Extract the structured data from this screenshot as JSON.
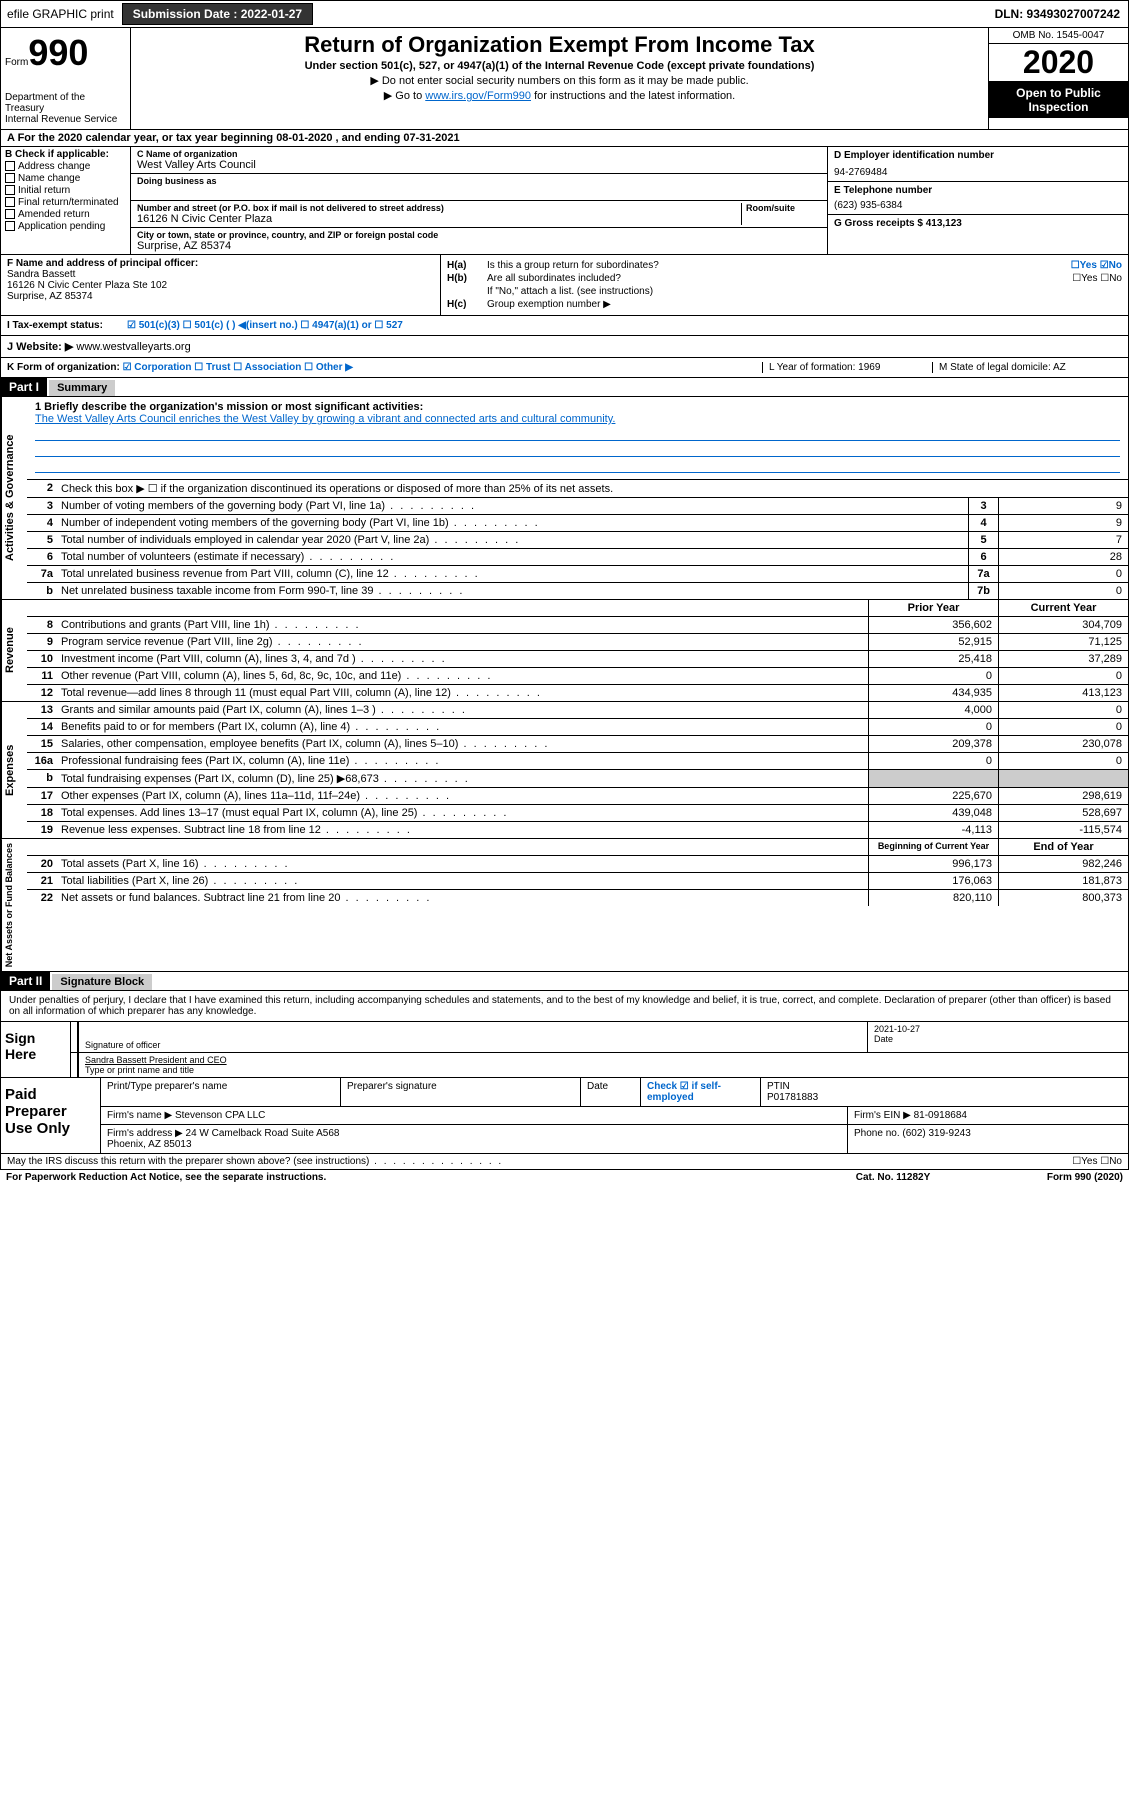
{
  "topbar": {
    "efile": "efile GRAPHIC print",
    "submission": "Submission Date : 2022-01-27",
    "dln": "DLN: 93493027007242"
  },
  "header": {
    "form_label": "Form",
    "form_number": "990",
    "dept": "Department of the Treasury\nInternal Revenue Service",
    "title": "Return of Organization Exempt From Income Tax",
    "subtitle": "Under section 501(c), 527, or 4947(a)(1) of the Internal Revenue Code (except private foundations)",
    "note1": "▶ Do not enter social security numbers on this form as it may be made public.",
    "note2_pre": "▶ Go to ",
    "note2_link": "www.irs.gov/Form990",
    "note2_post": " for instructions and the latest information.",
    "omb": "OMB No. 1545-0047",
    "year": "2020",
    "inspect": "Open to Public Inspection"
  },
  "sectionA": "A For the 2020 calendar year, or tax year beginning 08-01-2020    , and ending 07-31-2021",
  "B": {
    "label": "B Check if applicable:",
    "items": [
      "Address change",
      "Name change",
      "Initial return",
      "Final return/terminated",
      "Amended return",
      "Application pending"
    ]
  },
  "C": {
    "name_label": "C Name of organization",
    "name": "West Valley Arts Council",
    "dba_label": "Doing business as",
    "addr_label": "Number and street (or P.O. box if mail is not delivered to street address)",
    "room_label": "Room/suite",
    "addr": "16126 N Civic Center Plaza",
    "city_label": "City or town, state or province, country, and ZIP or foreign postal code",
    "city": "Surprise, AZ  85374"
  },
  "D": {
    "label": "D Employer identification number",
    "val": "94-2769484"
  },
  "E": {
    "label": "E Telephone number",
    "val": "(623) 935-6384"
  },
  "G": {
    "label": "G Gross receipts $ 413,123"
  },
  "F": {
    "label": "F  Name and address of principal officer:",
    "name": "Sandra Bassett",
    "addr1": "16126 N Civic Center Plaza Ste 102",
    "addr2": "Surprise, AZ  85374"
  },
  "H": {
    "a_label": "H(a)",
    "a_text": "Is this a group return for subordinates?",
    "a_yn": "☐Yes ☑No",
    "b_label": "H(b)",
    "b_text": "Are all subordinates included?",
    "b_yn": "☐Yes ☐No",
    "b_note": "If \"No,\" attach a list. (see instructions)",
    "c_label": "H(c)",
    "c_text": "Group exemption number ▶"
  },
  "I": {
    "label": "I    Tax-exempt status:",
    "opts": "☑ 501(c)(3)    ☐ 501(c) (  ) ◀(insert no.)    ☐ 4947(a)(1) or  ☐ 527"
  },
  "J": {
    "label": "J    Website: ▶",
    "val": " www.westvalleyarts.org"
  },
  "K": {
    "label": "K Form of organization:",
    "opts": " ☑ Corporation  ☐ Trust  ☐ Association  ☐ Other ▶"
  },
  "L": {
    "label": "L Year of formation: 1969"
  },
  "M": {
    "label": "M State of legal domicile: AZ"
  },
  "part1": {
    "hdr": "Part I",
    "title": "Summary"
  },
  "summary": {
    "line1_label": "1  Briefly describe the organization's mission or most significant activities:",
    "line1_text": "The West Valley Arts Council enriches the West Valley by growing a vibrant and connected arts and cultural community.",
    "line2": "Check this box ▶ ☐  if the organization discontinued its operations or disposed of more than 25% of its net assets.",
    "rows_a": [
      {
        "n": "3",
        "t": "Number of voting members of the governing body (Part VI, line 1a)",
        "b": "3",
        "v": "9"
      },
      {
        "n": "4",
        "t": "Number of independent voting members of the governing body (Part VI, line 1b)",
        "b": "4",
        "v": "9"
      },
      {
        "n": "5",
        "t": "Total number of individuals employed in calendar year 2020 (Part V, line 2a)",
        "b": "5",
        "v": "7"
      },
      {
        "n": "6",
        "t": "Total number of volunteers (estimate if necessary)",
        "b": "6",
        "v": "28"
      },
      {
        "n": "7a",
        "t": "Total unrelated business revenue from Part VIII, column (C), line 12",
        "b": "7a",
        "v": "0"
      },
      {
        "n": " b",
        "t": "Net unrelated business taxable income from Form 990-T, line 39",
        "b": "7b",
        "v": "0"
      }
    ],
    "hdr_prior": "Prior Year",
    "hdr_current": "Current Year",
    "rows_rev": [
      {
        "n": "8",
        "t": "Contributions and grants (Part VIII, line 1h)",
        "p": "356,602",
        "c": "304,709"
      },
      {
        "n": "9",
        "t": "Program service revenue (Part VIII, line 2g)",
        "p": "52,915",
        "c": "71,125"
      },
      {
        "n": "10",
        "t": "Investment income (Part VIII, column (A), lines 3, 4, and 7d )",
        "p": "25,418",
        "c": "37,289"
      },
      {
        "n": "11",
        "t": "Other revenue (Part VIII, column (A), lines 5, 6d, 8c, 9c, 10c, and 11e)",
        "p": "0",
        "c": "0"
      },
      {
        "n": "12",
        "t": "Total revenue—add lines 8 through 11 (must equal Part VIII, column (A), line 12)",
        "p": "434,935",
        "c": "413,123"
      }
    ],
    "rows_exp": [
      {
        "n": "13",
        "t": "Grants and similar amounts paid (Part IX, column (A), lines 1–3 )",
        "p": "4,000",
        "c": "0"
      },
      {
        "n": "14",
        "t": "Benefits paid to or for members (Part IX, column (A), line 4)",
        "p": "0",
        "c": "0"
      },
      {
        "n": "15",
        "t": "Salaries, other compensation, employee benefits (Part IX, column (A), lines 5–10)",
        "p": "209,378",
        "c": "230,078"
      },
      {
        "n": "16a",
        "t": "Professional fundraising fees (Part IX, column (A), line 11e)",
        "p": "0",
        "c": "0"
      },
      {
        "n": " b",
        "t": "Total fundraising expenses (Part IX, column (D), line 25) ▶68,673",
        "p": "",
        "c": "",
        "shade": true
      },
      {
        "n": "17",
        "t": "Other expenses (Part IX, column (A), lines 11a–11d, 11f–24e)",
        "p": "225,670",
        "c": "298,619"
      },
      {
        "n": "18",
        "t": "Total expenses. Add lines 13–17 (must equal Part IX, column (A), line 25)",
        "p": "439,048",
        "c": "528,697"
      },
      {
        "n": "19",
        "t": "Revenue less expenses. Subtract line 18 from line 12",
        "p": "-4,113",
        "c": "-115,574"
      }
    ],
    "hdr_beg": "Beginning of Current Year",
    "hdr_end": "End of Year",
    "rows_net": [
      {
        "n": "20",
        "t": "Total assets (Part X, line 16)",
        "p": "996,173",
        "c": "982,246"
      },
      {
        "n": "21",
        "t": "Total liabilities (Part X, line 26)",
        "p": "176,063",
        "c": "181,873"
      },
      {
        "n": "22",
        "t": "Net assets or fund balances. Subtract line 21 from line 20",
        "p": "820,110",
        "c": "800,373"
      }
    ],
    "side1": "Activities & Governance",
    "side2": "Revenue",
    "side3": "Expenses",
    "side4": "Net Assets or Fund Balances"
  },
  "part2": {
    "hdr": "Part II",
    "title": "Signature Block"
  },
  "sig": {
    "penalty": "Under penalties of perjury, I declare that I have examined this return, including accompanying schedules and statements, and to the best of my knowledge and belief, it is true, correct, and complete. Declaration of preparer (other than officer) is based on all information of which preparer has any knowledge.",
    "sign_here": "Sign Here",
    "sig_officer": "Signature of officer",
    "date_label": "Date",
    "date": "2021-10-27",
    "name_title": "Sandra Bassett  President and CEO",
    "type_label": "Type or print name and title"
  },
  "prep": {
    "label": "Paid Preparer Use Only",
    "r1": {
      "c1": "Print/Type preparer's name",
      "c2": "Preparer's signature",
      "c3": "Date",
      "c4": "Check ☑ if self-employed",
      "c5": "PTIN",
      "c5v": "P01781883"
    },
    "r2": {
      "c1": "Firm's name    ▶ Stevenson CPA LLC",
      "c2": "Firm's EIN ▶ 81-0918684"
    },
    "r3a": {
      "c1": "Firm's address ▶ 24 W Camelback Road Suite A568",
      "c2": "Phone no. (602) 319-9243"
    },
    "r3b": {
      "c1": "Phoenix, AZ  85013"
    }
  },
  "footer": {
    "q": "May the IRS discuss this return with the preparer shown above? (see instructions)",
    "yn": "☐Yes  ☐No",
    "paperwork": "For Paperwork Reduction Act Notice, see the separate instructions.",
    "cat": "Cat. No. 11282Y",
    "form": "Form 990 (2020)"
  }
}
